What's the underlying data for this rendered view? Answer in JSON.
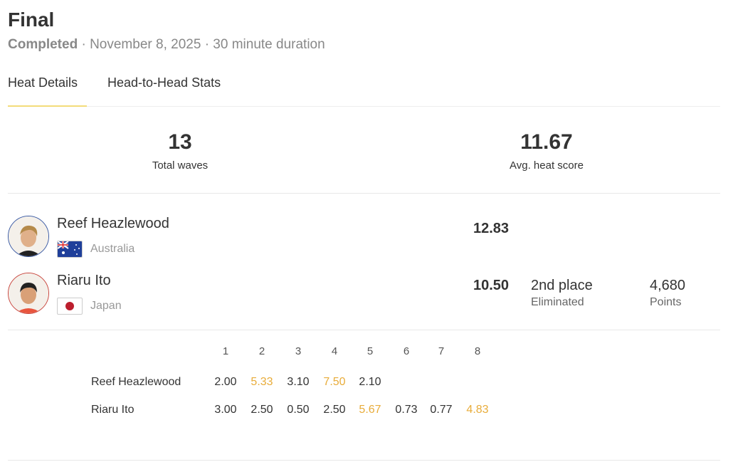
{
  "header": {
    "title": "Final",
    "status": "Completed",
    "date": "November 8, 2025",
    "duration": "30 minute duration",
    "sep": "·"
  },
  "tabs": [
    {
      "label": "Heat Details",
      "active": true
    },
    {
      "label": "Head-to-Head Stats",
      "active": false
    }
  ],
  "stats": [
    {
      "value": "13",
      "label": "Total waves"
    },
    {
      "value": "11.67",
      "label": "Avg. heat score"
    }
  ],
  "athletes": [
    {
      "name": "Reef Heazlewood",
      "country": "Australia",
      "flag": "australia-flag",
      "score": "12.83",
      "ring_color": "#3b5ba5"
    },
    {
      "name": "Riaru Ito",
      "country": "Japan",
      "flag": "japan-flag",
      "score": "10.50",
      "ring_color": "#c9473f",
      "place": "2nd place",
      "result": "Eliminated",
      "points": "4,680",
      "points_label": "Points"
    }
  ],
  "waves": {
    "headers": [
      "1",
      "2",
      "3",
      "4",
      "5",
      "6",
      "7",
      "8"
    ],
    "highlight_color": "#e8ac3a",
    "rows": [
      {
        "name": "Reef Heazlewood",
        "scores": [
          "2.00",
          "5.33",
          "3.10",
          "7.50",
          "2.10"
        ],
        "counting": [
          1,
          3
        ]
      },
      {
        "name": "Riaru Ito",
        "scores": [
          "3.00",
          "2.50",
          "0.50",
          "2.50",
          "5.67",
          "0.73",
          "0.77",
          "4.83"
        ],
        "counting": [
          4,
          7
        ]
      }
    ]
  }
}
